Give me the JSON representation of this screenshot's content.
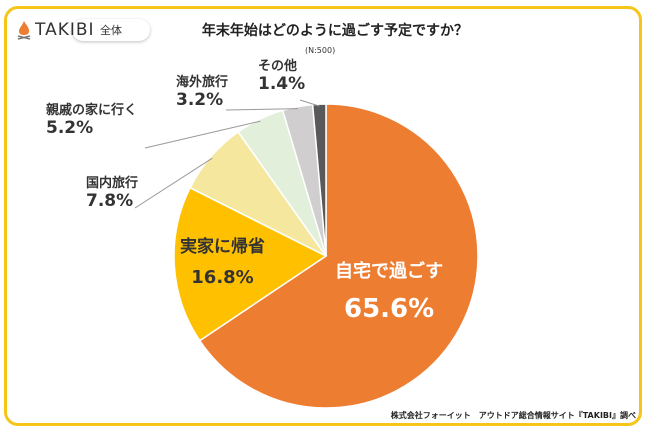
{
  "brand": "TAKIBI",
  "filter_label": "全体",
  "footer": "株式会社フォーイット　アウトドア総合情報サイト『TAKIBI』調べ",
  "chart_data": {
    "type": "pie",
    "title": "年末年始はどのように過ごす予定ですか？",
    "subtitle": "(N:500)",
    "slices": [
      {
        "label": "自宅で過ごす",
        "value": 65.6,
        "display": "65.6%",
        "color": "#ED7D31"
      },
      {
        "label": "実家に帰省",
        "value": 16.8,
        "display": "16.8%",
        "color": "#FFC000"
      },
      {
        "label": "国内旅行",
        "value": 7.8,
        "display": "7.8%",
        "color": "#F5E79E"
      },
      {
        "label": "親戚の家に行く",
        "value": 5.2,
        "display": "5.2%",
        "color": "#E2EFDA"
      },
      {
        "label": "海外旅行",
        "value": 3.2,
        "display": "3.2%",
        "color": "#D0CECE"
      },
      {
        "label": "その他",
        "value": 1.4,
        "display": "1.4%",
        "color": "#595959"
      }
    ],
    "start": "top",
    "direction": "clockwise"
  }
}
